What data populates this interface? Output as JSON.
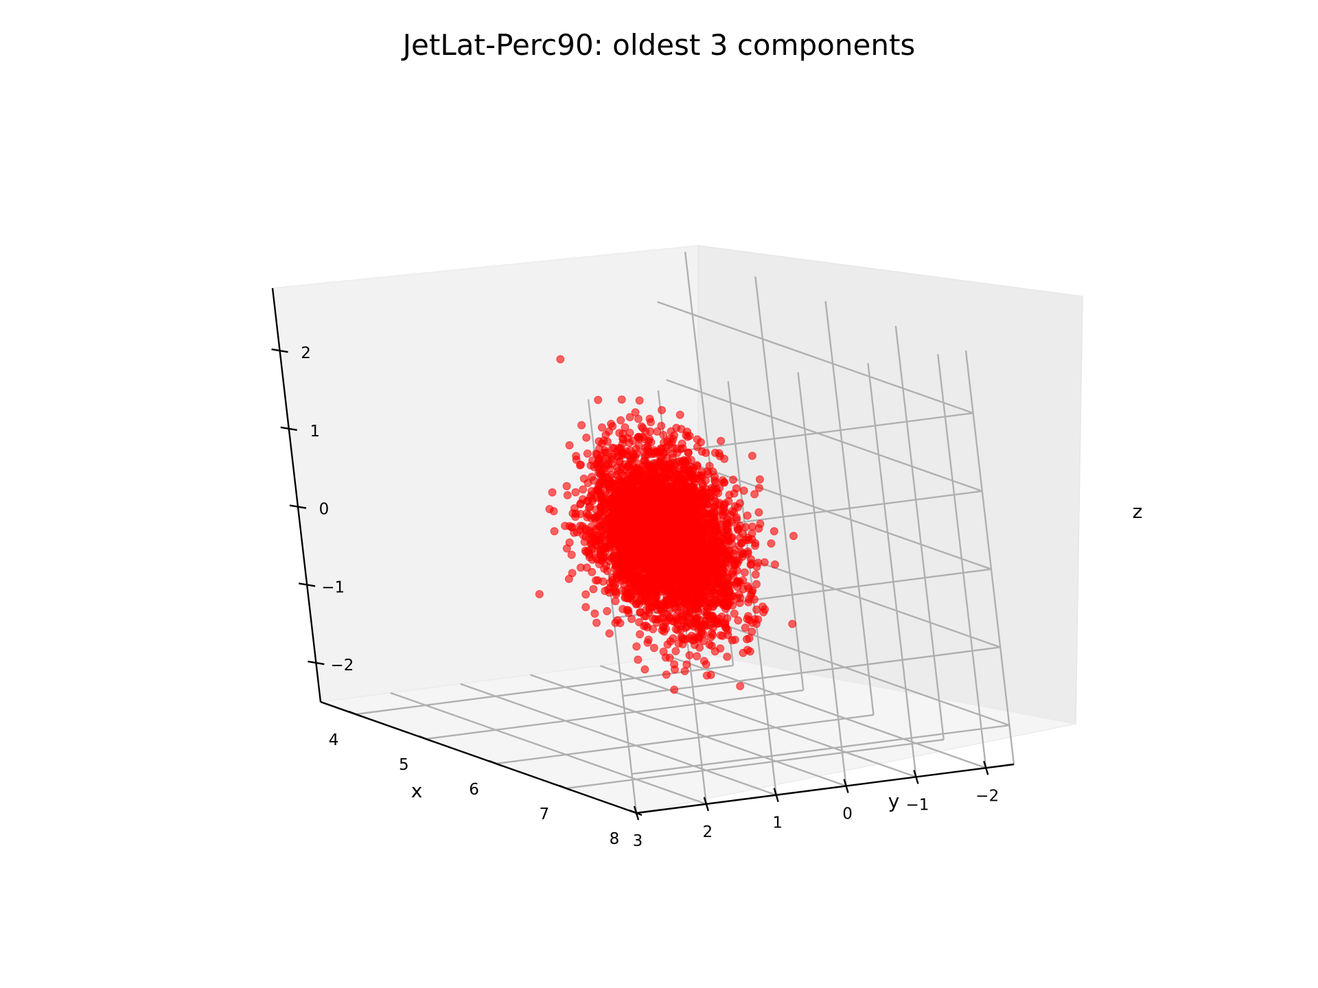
{
  "chart_data": {
    "type": "scatter",
    "projection": "3d",
    "title": "JetLat-Perc90: oldest 3 components",
    "xlabel": "x",
    "ylabel": "y",
    "zlabel": "z",
    "xlim": [
      3.5,
      8.0
    ],
    "ylim": [
      -2.4,
      3.0
    ],
    "zlim": [
      -2.5,
      2.8
    ],
    "xticks": [
      "4",
      "5",
      "6",
      "7",
      "8"
    ],
    "yticks": [
      "−2",
      "−1",
      "0",
      "1",
      "2",
      "3"
    ],
    "zticks": [
      "−2",
      "−1",
      "0",
      "1",
      "2"
    ],
    "grid": true,
    "series": [
      {
        "color": "#ff0000",
        "marker": "circle",
        "alpha": 0.6,
        "approx_points": 4000,
        "center": [
          6.1,
          0.35,
          0.1
        ],
        "spread": [
          0.55,
          0.55,
          0.65
        ]
      }
    ]
  }
}
